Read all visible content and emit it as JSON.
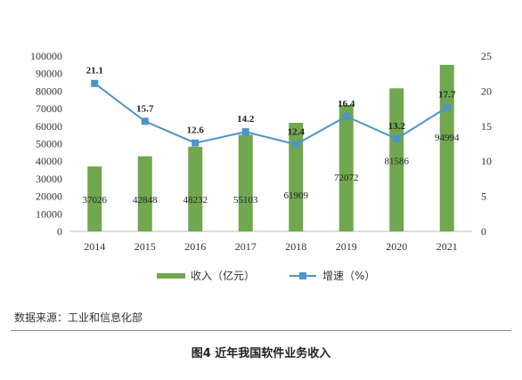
{
  "chart_data": {
    "type": "bar+line",
    "categories": [
      "2014",
      "2015",
      "2016",
      "2017",
      "2018",
      "2019",
      "2020",
      "2021"
    ],
    "series": [
      {
        "name": "收入（亿元）",
        "type": "bar",
        "axis": "left",
        "color": "#70a74f",
        "values": [
          37026,
          42848,
          48232,
          55103,
          61909,
          72072,
          81586,
          94994
        ]
      },
      {
        "name": "增速（%）",
        "type": "line",
        "axis": "right",
        "color": "#4d94c9",
        "values": [
          21.1,
          15.7,
          12.6,
          14.2,
          12.4,
          16.4,
          13.2,
          17.7
        ]
      }
    ],
    "y_left": {
      "min": 0,
      "max": 100000,
      "step": 10000,
      "ticks": [
        "0",
        "10000",
        "20000",
        "30000",
        "40000",
        "50000",
        "60000",
        "70000",
        "80000",
        "90000",
        "100000"
      ]
    },
    "y_right": {
      "min": 0,
      "max": 25,
      "step": 5,
      "ticks": [
        "0",
        "5",
        "10",
        "15",
        "20",
        "25"
      ]
    },
    "grid": false,
    "legend_position": "bottom"
  },
  "source_text": "数据来源：工业和信息化部",
  "caption": "图4 近年我国软件业务收入"
}
